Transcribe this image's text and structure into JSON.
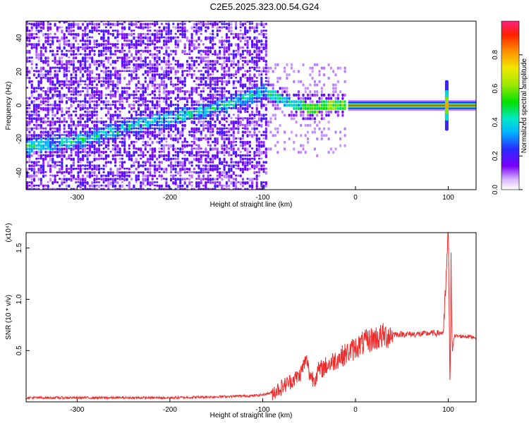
{
  "title": "C2E5.2025.323.00.54.G24",
  "chart_data": [
    {
      "type": "heatmap",
      "title": "C2E5.2025.323.00.54.G24",
      "xlabel": "Height of straight line (km)",
      "ylabel": "Frequency (Hz)",
      "xlim": [
        -355,
        130
      ],
      "ylim": [
        -50,
        50
      ],
      "x_ticks": [
        -300,
        -200,
        -100,
        0,
        100
      ],
      "y_ticks": [
        -40,
        -20,
        0,
        20,
        40
      ],
      "x_tick_labels": [
        "-300",
        "-200",
        "-100",
        "0",
        "100"
      ],
      "y_tick_labels": [
        "-40",
        "-20",
        "0",
        "20",
        "40"
      ],
      "colorbar": {
        "label": "Normalized spectral amplitude",
        "range": [
          0,
          1
        ],
        "ticks": [
          0.0,
          0.2,
          0.4,
          0.6,
          0.8
        ],
        "tick_labels": [
          "0.0",
          "0.2",
          "0.4",
          "0.6",
          "0.8"
        ],
        "colormap": "rainbow (white → purple → blue → cyan → green → yellow → orange → red → magenta)"
      },
      "ridge": {
        "description": "dominant frequency trace vs height",
        "x": [
          -350,
          -330,
          -300,
          -270,
          -240,
          -210,
          -180,
          -150,
          -120,
          -100,
          -90,
          -80,
          -70,
          -60,
          -50,
          -40,
          -30,
          -20,
          -10,
          0,
          50,
          95,
          100,
          130
        ],
        "y": [
          -24,
          -23,
          -21,
          -17,
          -12,
          -9,
          -5,
          -1,
          4,
          8,
          6,
          3,
          1,
          0,
          -2,
          -1,
          0,
          0,
          0,
          0,
          0,
          0,
          0,
          0
        ],
        "peak_amplitude": 1.0
      },
      "noise_region_km": [
        -355,
        -95
      ],
      "clean_region_km": [
        -10,
        130
      ],
      "spike_at_km": 98
    },
    {
      "type": "line",
      "xlabel": "Height of straight line (km)",
      "ylabel": "SNR (10 * v/v)",
      "y_scale_label": "(x10⁴)",
      "xlim": [
        -355,
        130
      ],
      "ylim": [
        0,
        1.65
      ],
      "x_ticks": [
        -300,
        -200,
        -100,
        0,
        100
      ],
      "x_tick_labels": [
        "-300",
        "-200",
        "-100",
        "0",
        "100"
      ],
      "y_ticks": [
        0.5,
        1.0,
        1.5
      ],
      "y_tick_labels": [
        "0.5",
        "1.0",
        "1.5"
      ],
      "series": [
        {
          "color": "#ef2b2b",
          "x": [
            -355,
            -300,
            -250,
            -200,
            -150,
            -110,
            -100,
            -90,
            -80,
            -70,
            -60,
            -55,
            -52,
            -50,
            -45,
            -40,
            -30,
            -20,
            -10,
            0,
            10,
            20,
            30,
            40,
            50,
            60,
            70,
            80,
            90,
            95,
            100,
            101,
            102,
            103,
            104,
            105,
            110,
            120,
            130
          ],
          "y": [
            0.04,
            0.04,
            0.04,
            0.04,
            0.05,
            0.06,
            0.07,
            0.09,
            0.14,
            0.2,
            0.26,
            0.38,
            0.4,
            0.28,
            0.22,
            0.3,
            0.36,
            0.42,
            0.47,
            0.53,
            0.58,
            0.62,
            0.64,
            0.66,
            0.66,
            0.66,
            0.66,
            0.67,
            0.67,
            0.68,
            1.65,
            0.9,
            0.1,
            1.35,
            0.5,
            0.64,
            0.64,
            0.64,
            0.63
          ]
        }
      ]
    }
  ]
}
